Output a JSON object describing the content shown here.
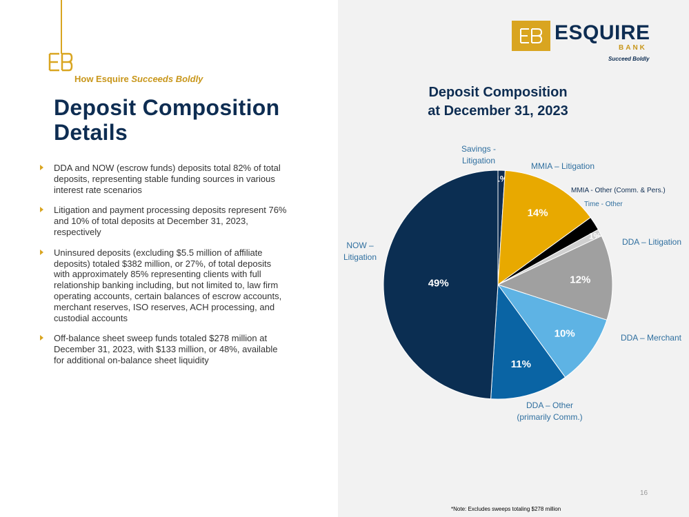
{
  "header": {
    "tagline_prefix": "How Esquire",
    "tagline_emphasis": "Succeeds Boldly",
    "title_line1": "Deposit Composition",
    "title_line2": "Details"
  },
  "bullets": [
    "DDA and NOW (escrow funds) deposits total 82% of total deposits, representing stable funding sources in various interest rate scenarios",
    "Litigation and payment processing deposits represent 76% and 10% of total deposits at December 31, 2023, respectively",
    "Uninsured deposits (excluding $5.5 million of affiliate deposits) totaled $382 million, or 27%, of total deposits with approximately 85% representing clients with full relationship banking including, but not limited to, law firm operating accounts, certain balances of escrow accounts, merchant reserves, ISO reserves, ACH processing, and custodial accounts",
    "Off-balance sheet sweep funds totaled $278 million at December 31, 2023, with $133 million, or 48%, available for additional on-balance sheet liquidity"
  ],
  "logo": {
    "name": "ESQUIRE",
    "bank": "BANK",
    "motto": "Succeed Boldly"
  },
  "footer": {
    "note": "*Note: Excludes sweeps totaling $278 million",
    "page_number": "16"
  },
  "colors": {
    "navy": "#0e2d52",
    "gold": "#d9a520",
    "gray": "#a0a0a0",
    "light_blue": "#5eb3e4",
    "mid_blue": "#0a64a4",
    "black": "#000000"
  },
  "chart_data": {
    "type": "pie",
    "title_line1": "Deposit Composition",
    "title_line2": "at December 31, 2023",
    "slices": [
      {
        "label": "Savings -\nLitigation",
        "value": 1,
        "value_label": "1%",
        "color": "#0e2d52"
      },
      {
        "label": "MMIA – Litigation",
        "value": 14,
        "value_label": "14%",
        "color": "#e8a900"
      },
      {
        "label": "MMIA - Other (Comm. & Pers.)",
        "value": 2,
        "value_label": "2%",
        "color": "#000000"
      },
      {
        "label": "Time - Other",
        "value": 1,
        "value_label": "1%",
        "color": "#d0d0d0"
      },
      {
        "label": "DDA – Litigation",
        "value": 12,
        "value_label": "12%",
        "color": "#a0a0a0"
      },
      {
        "label": "DDA – Merchant",
        "value": 10,
        "value_label": "10%",
        "color": "#5eb3e4"
      },
      {
        "label": "DDA – Other\n(primarily Comm.)",
        "value": 11,
        "value_label": "11%",
        "color": "#0a64a4"
      },
      {
        "label": "NOW –\nLitigation",
        "value": 49,
        "value_label": "49%",
        "color": "#0b2e52"
      }
    ]
  }
}
